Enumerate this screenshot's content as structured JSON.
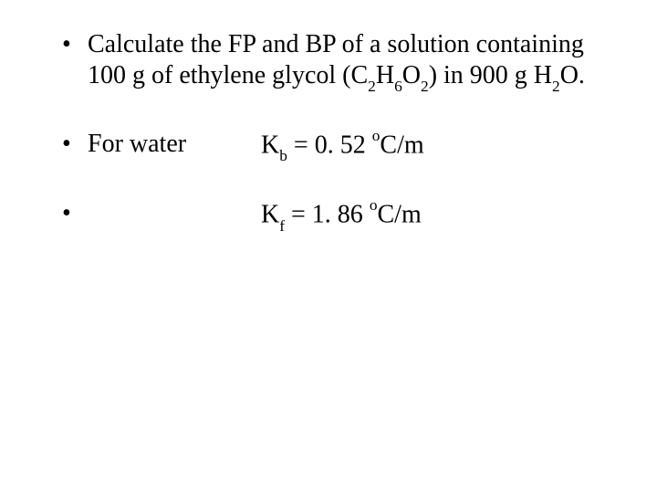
{
  "text_color": "#000000",
  "background_color": "#ffffff",
  "font_family": "Times New Roman",
  "base_fontsize": 28,
  "items": {
    "q_pre": "Calculate the FP and BP of a solution containing 100 g of ethylene glycol (C",
    "q_c_sub": "2",
    "q_h": "H",
    "q_h_sub": "6",
    "q_o": "O",
    "q_o_sub": "2",
    "q_mid": ") in 900 g H",
    "q_h2o_sub": "2",
    "q_end": "O.",
    "for_water": "For water",
    "kb_k": "K",
    "kb_sub": "b",
    "kb_eq": " = 0. 52 ",
    "kb_sup": "o",
    "kb_unit": "C/m",
    "kf_k": "K",
    "kf_sub": "f",
    "kf_eq": " = 1. 86 ",
    "kf_sup": "o",
    "kf_unit": "C/m"
  }
}
